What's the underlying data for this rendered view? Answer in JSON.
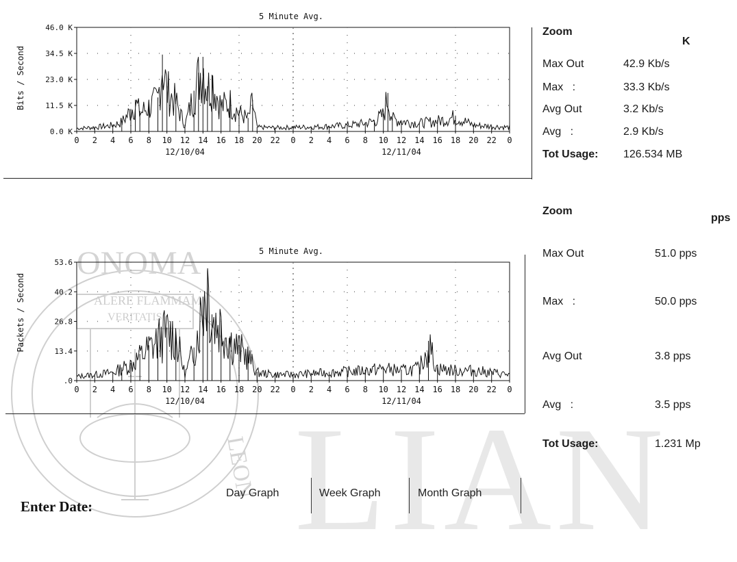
{
  "watermark": {
    "letters": "LIAN",
    "seal_text": [
      "ONOMA",
      "ALERE FLAMMAM",
      "VERITATIS",
      "LEON"
    ]
  },
  "graph_bits": {
    "title": "5 Minute Avg.",
    "ylabel": "Bits / Second",
    "y_ticks": [
      "46.0 K",
      "34.5 K",
      "23.0 K",
      "11.5 K",
      "0.0 K"
    ],
    "x_ticks": [
      "0",
      "2",
      "4",
      "6",
      "8",
      "10",
      "12",
      "14",
      "16",
      "18",
      "20",
      "22",
      "0",
      "2",
      "4",
      "6",
      "8",
      "10",
      "12",
      "14",
      "16",
      "18",
      "20",
      "22",
      "0"
    ],
    "dates": [
      "12/10/04",
      "12/11/04"
    ]
  },
  "graph_pkts": {
    "title": "5 Minute Avg.",
    "ylabel": "Packets / Second",
    "y_ticks": [
      "53.6",
      "40.2",
      "26.8",
      "13.4",
      ".0"
    ],
    "x_ticks": [
      "0",
      "2",
      "4",
      "6",
      "8",
      "10",
      "12",
      "14",
      "16",
      "18",
      "20",
      "22",
      "0",
      "2",
      "4",
      "6",
      "8",
      "10",
      "12",
      "14",
      "16",
      "18",
      "20",
      "22",
      "0"
    ],
    "dates": [
      "12/10/04",
      "12/11/04"
    ]
  },
  "chart_data": [
    {
      "type": "line",
      "title": "5 Minute Avg.",
      "ylabel": "Bits / Second",
      "ylim": [
        0,
        46000
      ],
      "x_ticks": [
        "0",
        "2",
        "4",
        "6",
        "8",
        "10",
        "12",
        "14",
        "16",
        "18",
        "20",
        "22",
        "0",
        "2",
        "4",
        "6",
        "8",
        "10",
        "12",
        "14",
        "16",
        "18",
        "20",
        "22",
        "0"
      ],
      "dates": [
        "12/10/04",
        "12/11/04"
      ],
      "series": [
        {
          "x": [
            0,
            2,
            4,
            5,
            6,
            6.5,
            7,
            8,
            9,
            9.5,
            10,
            11,
            12,
            13,
            13.5,
            14,
            14.5,
            15,
            16,
            17,
            18,
            19,
            19.5,
            20,
            22,
            24,
            26,
            28,
            30,
            32,
            33,
            34,
            34.5,
            35,
            36,
            38,
            40,
            42,
            44,
            46,
            48
          ],
          "y": [
            1500,
            2000,
            3000,
            4500,
            10000,
            14000,
            9000,
            12000,
            15000,
            34000,
            20000,
            14000,
            3000,
            18000,
            26000,
            33000,
            20000,
            25000,
            12000,
            14000,
            9000,
            6000,
            14000,
            2000,
            1800,
            2000,
            2200,
            2500,
            3000,
            4000,
            5000,
            8000,
            17000,
            6000,
            5000,
            4000,
            5000,
            7000,
            3000,
            2500,
            2000
          ]
        }
      ]
    },
    {
      "type": "line",
      "title": "5 Minute Avg.",
      "ylabel": "Packets / Second",
      "ylim": [
        0,
        53.6
      ],
      "x_ticks": [
        "0",
        "2",
        "4",
        "6",
        "8",
        "10",
        "12",
        "14",
        "16",
        "18",
        "20",
        "22",
        "0",
        "2",
        "4",
        "6",
        "8",
        "10",
        "12",
        "14",
        "16",
        "18",
        "20",
        "22",
        "0"
      ],
      "dates": [
        "12/10/04",
        "12/11/04"
      ],
      "series": [
        {
          "x": [
            0,
            2,
            4,
            5,
            6,
            7,
            8,
            9,
            10,
            11,
            12,
            13,
            14,
            14.5,
            15,
            16,
            17,
            18,
            19,
            20,
            22,
            24,
            26,
            28,
            30,
            32,
            34,
            36,
            38,
            39,
            40,
            42,
            44,
            46,
            48
          ],
          "y": [
            2,
            3,
            4,
            6,
            8,
            12,
            16,
            20,
            24,
            22,
            3,
            15,
            38,
            50,
            30,
            28,
            20,
            16,
            12,
            4,
            3,
            3,
            3.5,
            4,
            4.5,
            5,
            6,
            5,
            6,
            18,
            6,
            5,
            5,
            4,
            3
          ]
        }
      ]
    }
  ],
  "stats_bits": {
    "zoom": "Zoom",
    "unit": "K",
    "rows": [
      {
        "label": "Max Out",
        "value": "42.9 Kb/s"
      },
      {
        "label": "Max   :",
        "value": "33.3 Kb/s"
      },
      {
        "label": "Avg Out",
        "value": "3.2 Kb/s"
      },
      {
        "label": "Avg   :",
        "value": "2.9 Kb/s"
      }
    ],
    "total_label": "Tot Usage:",
    "total_value": "126.534 MB"
  },
  "stats_pkts": {
    "zoom": "Zoom",
    "unit": "pps",
    "rows": [
      {
        "label": "Max Out",
        "value": "51.0 pps"
      },
      {
        "label": "Max   :",
        "value": "50.0 pps"
      },
      {
        "label": "Avg Out",
        "value": "3.8 pps"
      },
      {
        "label": "Avg   :",
        "value": "3.5 pps"
      }
    ],
    "total_label": "Tot Usage:",
    "total_value": "1.231 Mp"
  },
  "tabs": [
    "Day Graph",
    "Week Graph",
    "Month Graph"
  ],
  "enter_date": "Enter Date:",
  "colors": {
    "line": "#111111",
    "grid": "#777777",
    "watermark": "#d9d9d9"
  }
}
